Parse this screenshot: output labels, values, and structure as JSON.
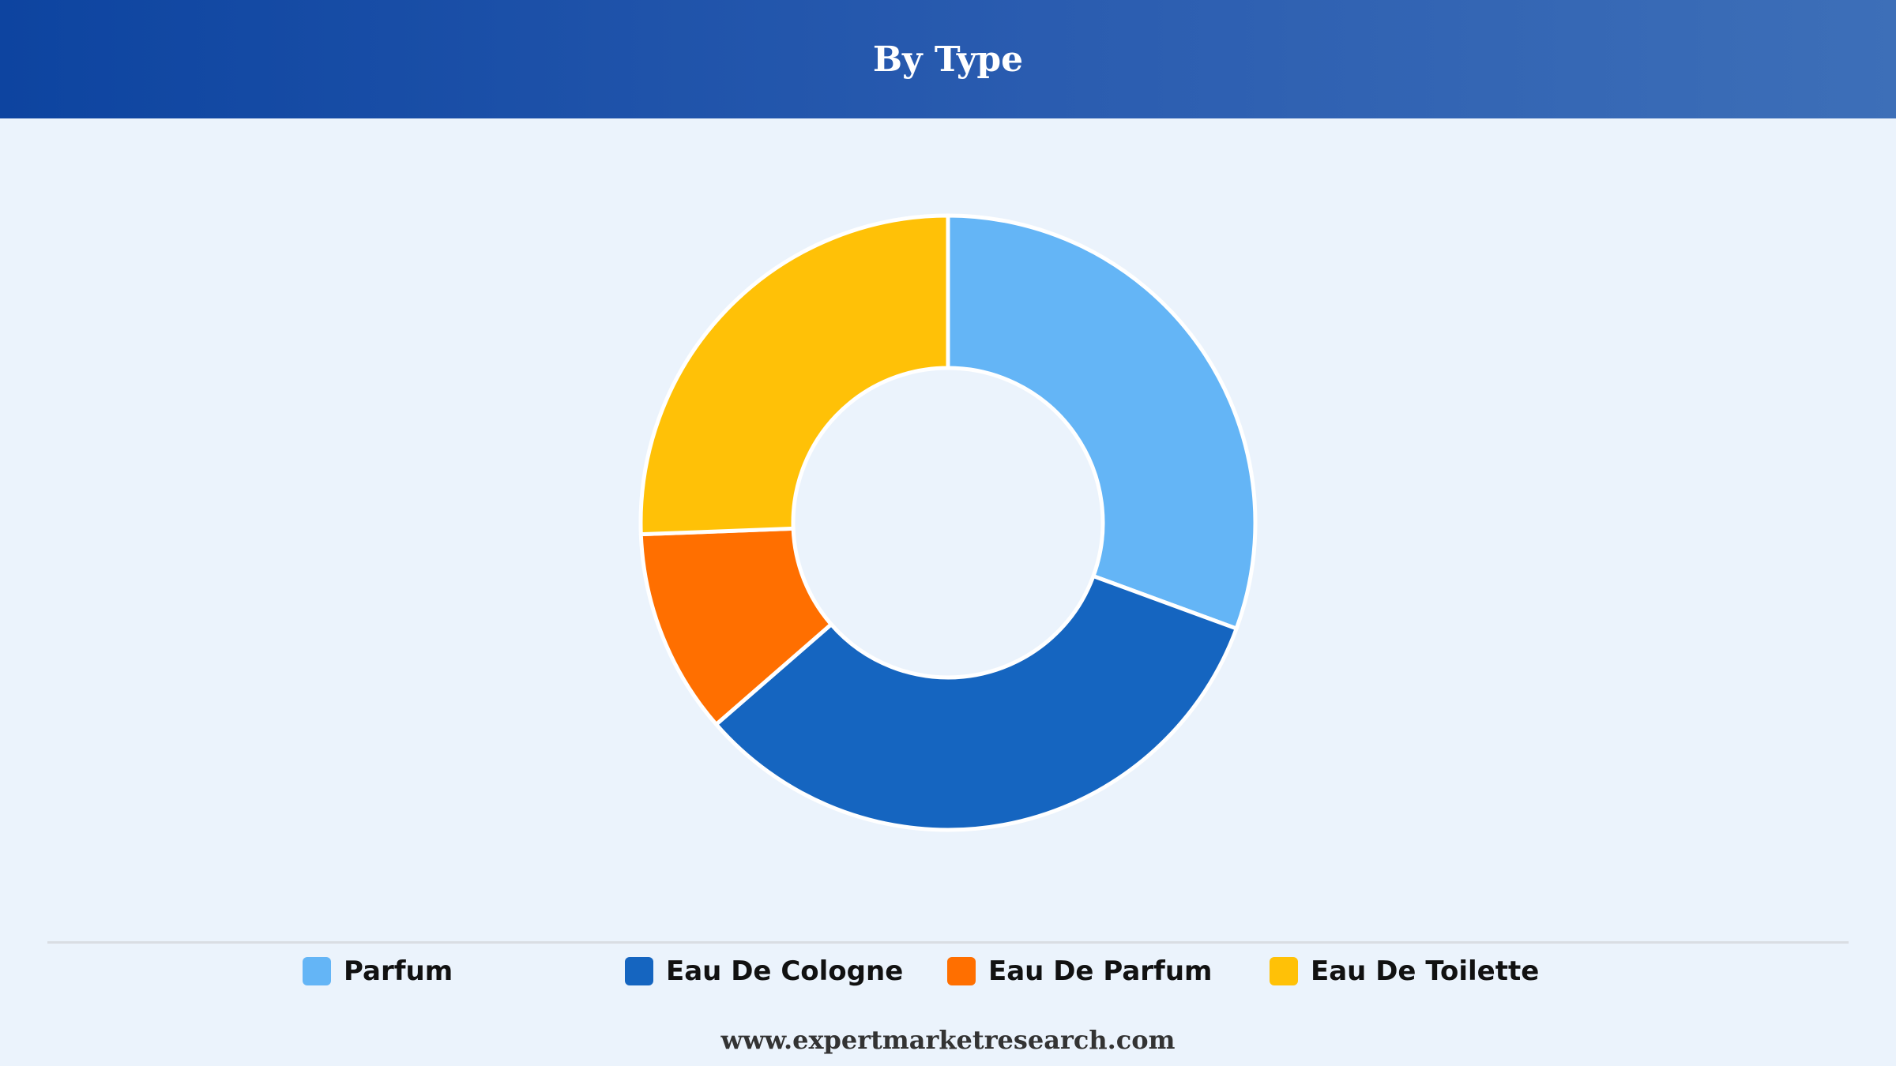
{
  "header": {
    "title": "By Type"
  },
  "chart_data": {
    "type": "pie",
    "donut": true,
    "categories": [
      "Parfum",
      "Eau De Cologne",
      "Eau De Parfum",
      "Eau De Toilette"
    ],
    "values": [
      30.6,
      33.0,
      10.8,
      25.6
    ],
    "colors": [
      "#64b5f6",
      "#1565c0",
      "#ff6f00",
      "#ffc107"
    ],
    "legend": "bottom"
  },
  "footer": {
    "text": "www.expertmarketresearch.com"
  }
}
